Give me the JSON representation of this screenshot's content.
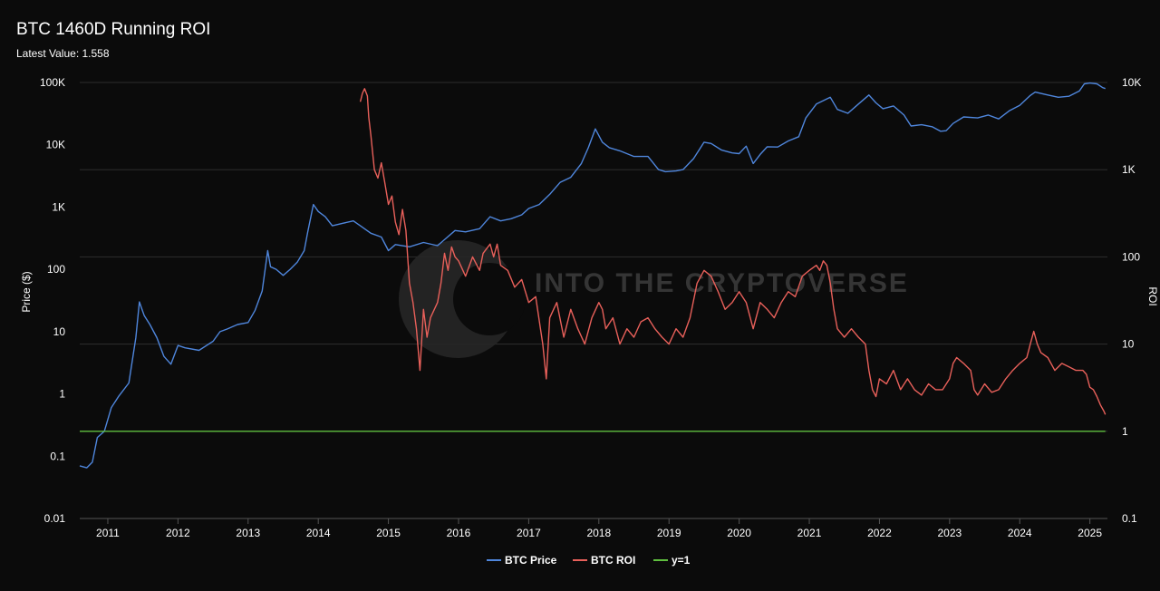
{
  "chart_data": {
    "type": "line",
    "title": "BTC 1460D Running ROI",
    "subtitle": "Latest Value: 1.558",
    "ylabel_left": "Price ($)",
    "ylabel_right": "ROI",
    "scale": "log",
    "ylim_left": [
      0.01,
      100000
    ],
    "ylim_right": [
      0.1,
      10000
    ],
    "xlim": [
      2010.6,
      2025.25
    ],
    "x_ticks": [
      "2011",
      "2012",
      "2013",
      "2014",
      "2015",
      "2016",
      "2017",
      "2018",
      "2019",
      "2020",
      "2021",
      "2022",
      "2023",
      "2024",
      "2025"
    ],
    "y_ticks_left": [
      "0.01",
      "0.1",
      "1",
      "10",
      "100",
      "1K",
      "10K",
      "100K"
    ],
    "y_ticks_right": [
      "0.1",
      "1",
      "10",
      "100",
      "1K",
      "10K"
    ],
    "grid": true,
    "legend_position": "bottom",
    "watermark": "INTO THE CRYPTOVERSE",
    "series": [
      {
        "name": "BTC Price",
        "color": "#4f86dc",
        "points": [
          [
            2010.6,
            0.07
          ],
          [
            2010.7,
            0.065
          ],
          [
            2010.78,
            0.08
          ],
          [
            2010.85,
            0.2
          ],
          [
            2010.95,
            0.25
          ],
          [
            2011.05,
            0.6
          ],
          [
            2011.15,
            0.9
          ],
          [
            2011.3,
            1.5
          ],
          [
            2011.4,
            8
          ],
          [
            2011.45,
            30
          ],
          [
            2011.52,
            18
          ],
          [
            2011.6,
            13
          ],
          [
            2011.7,
            8
          ],
          [
            2011.8,
            4
          ],
          [
            2011.9,
            3
          ],
          [
            2012.0,
            6
          ],
          [
            2012.1,
            5.5
          ],
          [
            2012.3,
            5
          ],
          [
            2012.5,
            7
          ],
          [
            2012.6,
            10
          ],
          [
            2012.7,
            11
          ],
          [
            2012.85,
            13
          ],
          [
            2013.0,
            14
          ],
          [
            2013.1,
            22
          ],
          [
            2013.2,
            45
          ],
          [
            2013.28,
            200
          ],
          [
            2013.32,
            110
          ],
          [
            2013.4,
            100
          ],
          [
            2013.5,
            80
          ],
          [
            2013.6,
            100
          ],
          [
            2013.7,
            130
          ],
          [
            2013.8,
            200
          ],
          [
            2013.85,
            400
          ],
          [
            2013.93,
            1100
          ],
          [
            2014.0,
            850
          ],
          [
            2014.1,
            700
          ],
          [
            2014.2,
            500
          ],
          [
            2014.35,
            550
          ],
          [
            2014.5,
            600
          ],
          [
            2014.6,
            500
          ],
          [
            2014.75,
            380
          ],
          [
            2014.9,
            330
          ],
          [
            2015.0,
            200
          ],
          [
            2015.1,
            250
          ],
          [
            2015.3,
            230
          ],
          [
            2015.5,
            270
          ],
          [
            2015.7,
            240
          ],
          [
            2015.8,
            300
          ],
          [
            2015.95,
            420
          ],
          [
            2016.1,
            400
          ],
          [
            2016.3,
            450
          ],
          [
            2016.45,
            700
          ],
          [
            2016.6,
            600
          ],
          [
            2016.75,
            650
          ],
          [
            2016.9,
            750
          ],
          [
            2017.0,
            950
          ],
          [
            2017.15,
            1100
          ],
          [
            2017.3,
            1600
          ],
          [
            2017.45,
            2500
          ],
          [
            2017.6,
            3000
          ],
          [
            2017.75,
            5000
          ],
          [
            2017.85,
            9000
          ],
          [
            2017.95,
            18000
          ],
          [
            2018.05,
            11000
          ],
          [
            2018.15,
            9000
          ],
          [
            2018.3,
            8000
          ],
          [
            2018.5,
            6500
          ],
          [
            2018.7,
            6500
          ],
          [
            2018.85,
            4000
          ],
          [
            2018.95,
            3700
          ],
          [
            2019.1,
            3800
          ],
          [
            2019.2,
            4000
          ],
          [
            2019.35,
            6000
          ],
          [
            2019.5,
            11000
          ],
          [
            2019.6,
            10500
          ],
          [
            2019.75,
            8200
          ],
          [
            2019.9,
            7400
          ],
          [
            2020.0,
            7200
          ],
          [
            2020.1,
            9500
          ],
          [
            2020.2,
            5000
          ],
          [
            2020.3,
            7000
          ],
          [
            2020.4,
            9300
          ],
          [
            2020.55,
            9200
          ],
          [
            2020.7,
            11500
          ],
          [
            2020.85,
            13500
          ],
          [
            2020.95,
            27000
          ],
          [
            2021.1,
            45000
          ],
          [
            2021.3,
            58000
          ],
          [
            2021.4,
            37000
          ],
          [
            2021.55,
            32000
          ],
          [
            2021.7,
            45000
          ],
          [
            2021.85,
            63000
          ],
          [
            2021.95,
            47000
          ],
          [
            2022.05,
            38000
          ],
          [
            2022.2,
            42000
          ],
          [
            2022.35,
            30000
          ],
          [
            2022.45,
            20000
          ],
          [
            2022.6,
            21000
          ],
          [
            2022.75,
            19500
          ],
          [
            2022.87,
            16500
          ],
          [
            2022.95,
            16800
          ],
          [
            2023.05,
            22000
          ],
          [
            2023.2,
            28000
          ],
          [
            2023.4,
            27000
          ],
          [
            2023.55,
            30000
          ],
          [
            2023.7,
            26000
          ],
          [
            2023.85,
            35000
          ],
          [
            2024.0,
            43000
          ],
          [
            2024.15,
            62000
          ],
          [
            2024.22,
            70000
          ],
          [
            2024.4,
            63000
          ],
          [
            2024.55,
            58000
          ],
          [
            2024.7,
            60000
          ],
          [
            2024.85,
            73000
          ],
          [
            2024.92,
            95000
          ],
          [
            2025.0,
            98000
          ],
          [
            2025.1,
            95000
          ],
          [
            2025.18,
            83000
          ],
          [
            2025.22,
            80000
          ]
        ]
      },
      {
        "name": "BTC ROI",
        "color": "#e8605a",
        "points": [
          [
            2014.6,
            6000
          ],
          [
            2014.63,
            7500
          ],
          [
            2014.66,
            8500
          ],
          [
            2014.7,
            7000
          ],
          [
            2014.72,
            4000
          ],
          [
            2014.75,
            2500
          ],
          [
            2014.8,
            1000
          ],
          [
            2014.85,
            800
          ],
          [
            2014.9,
            1200
          ],
          [
            2014.95,
            700
          ],
          [
            2015.0,
            400
          ],
          [
            2015.05,
            500
          ],
          [
            2015.1,
            250
          ],
          [
            2015.15,
            180
          ],
          [
            2015.2,
            350
          ],
          [
            2015.25,
            200
          ],
          [
            2015.3,
            50
          ],
          [
            2015.35,
            30
          ],
          [
            2015.4,
            15
          ],
          [
            2015.45,
            5
          ],
          [
            2015.5,
            25
          ],
          [
            2015.55,
            12
          ],
          [
            2015.6,
            20
          ],
          [
            2015.7,
            30
          ],
          [
            2015.75,
            50
          ],
          [
            2015.8,
            110
          ],
          [
            2015.85,
            70
          ],
          [
            2015.9,
            130
          ],
          [
            2015.95,
            100
          ],
          [
            2016.0,
            90
          ],
          [
            2016.1,
            60
          ],
          [
            2016.2,
            100
          ],
          [
            2016.3,
            70
          ],
          [
            2016.35,
            110
          ],
          [
            2016.45,
            140
          ],
          [
            2016.5,
            100
          ],
          [
            2016.55,
            140
          ],
          [
            2016.6,
            80
          ],
          [
            2016.7,
            70
          ],
          [
            2016.8,
            45
          ],
          [
            2016.9,
            55
          ],
          [
            2017.0,
            30
          ],
          [
            2017.1,
            35
          ],
          [
            2017.2,
            10
          ],
          [
            2017.25,
            4
          ],
          [
            2017.3,
            20
          ],
          [
            2017.4,
            30
          ],
          [
            2017.5,
            12
          ],
          [
            2017.6,
            25
          ],
          [
            2017.7,
            15
          ],
          [
            2017.8,
            10
          ],
          [
            2017.9,
            20
          ],
          [
            2018.0,
            30
          ],
          [
            2018.05,
            25
          ],
          [
            2018.1,
            15
          ],
          [
            2018.2,
            20
          ],
          [
            2018.3,
            10
          ],
          [
            2018.4,
            15
          ],
          [
            2018.5,
            12
          ],
          [
            2018.6,
            18
          ],
          [
            2018.7,
            20
          ],
          [
            2018.8,
            15
          ],
          [
            2018.9,
            12
          ],
          [
            2019.0,
            10
          ],
          [
            2019.1,
            15
          ],
          [
            2019.2,
            12
          ],
          [
            2019.3,
            20
          ],
          [
            2019.4,
            50
          ],
          [
            2019.5,
            70
          ],
          [
            2019.6,
            60
          ],
          [
            2019.7,
            40
          ],
          [
            2019.8,
            25
          ],
          [
            2019.9,
            30
          ],
          [
            2020.0,
            40
          ],
          [
            2020.1,
            30
          ],
          [
            2020.2,
            15
          ],
          [
            2020.3,
            30
          ],
          [
            2020.4,
            25
          ],
          [
            2020.5,
            20
          ],
          [
            2020.6,
            30
          ],
          [
            2020.7,
            40
          ],
          [
            2020.8,
            35
          ],
          [
            2020.9,
            60
          ],
          [
            2021.0,
            70
          ],
          [
            2021.1,
            80
          ],
          [
            2021.15,
            70
          ],
          [
            2021.2,
            90
          ],
          [
            2021.25,
            80
          ],
          [
            2021.3,
            50
          ],
          [
            2021.35,
            25
          ],
          [
            2021.4,
            15
          ],
          [
            2021.5,
            12
          ],
          [
            2021.6,
            15
          ],
          [
            2021.7,
            12
          ],
          [
            2021.8,
            10
          ],
          [
            2021.85,
            5
          ],
          [
            2021.9,
            3
          ],
          [
            2021.95,
            2.5
          ],
          [
            2022.0,
            4
          ],
          [
            2022.1,
            3.5
          ],
          [
            2022.2,
            5
          ],
          [
            2022.3,
            3
          ],
          [
            2022.4,
            4
          ],
          [
            2022.5,
            3
          ],
          [
            2022.6,
            2.6
          ],
          [
            2022.7,
            3.5
          ],
          [
            2022.8,
            3
          ],
          [
            2022.9,
            3
          ],
          [
            2023.0,
            4
          ],
          [
            2023.05,
            6
          ],
          [
            2023.1,
            7
          ],
          [
            2023.2,
            6
          ],
          [
            2023.3,
            5
          ],
          [
            2023.35,
            3
          ],
          [
            2023.4,
            2.6
          ],
          [
            2023.5,
            3.5
          ],
          [
            2023.6,
            2.8
          ],
          [
            2023.7,
            3
          ],
          [
            2023.8,
            4
          ],
          [
            2023.9,
            5
          ],
          [
            2024.0,
            6
          ],
          [
            2024.1,
            7
          ],
          [
            2024.15,
            10
          ],
          [
            2024.2,
            14
          ],
          [
            2024.25,
            10
          ],
          [
            2024.3,
            8
          ],
          [
            2024.4,
            7
          ],
          [
            2024.5,
            5
          ],
          [
            2024.6,
            6
          ],
          [
            2024.7,
            5.5
          ],
          [
            2024.8,
            5
          ],
          [
            2024.9,
            5
          ],
          [
            2024.95,
            4.5
          ],
          [
            2025.0,
            3.2
          ],
          [
            2025.05,
            3
          ],
          [
            2025.1,
            2.5
          ],
          [
            2025.15,
            2
          ],
          [
            2025.2,
            1.7
          ],
          [
            2025.22,
            1.558
          ]
        ]
      },
      {
        "name": "y=1",
        "color": "#5fbf3f",
        "points": [
          [
            2010.6,
            1
          ],
          [
            2025.22,
            1
          ]
        ]
      }
    ]
  }
}
